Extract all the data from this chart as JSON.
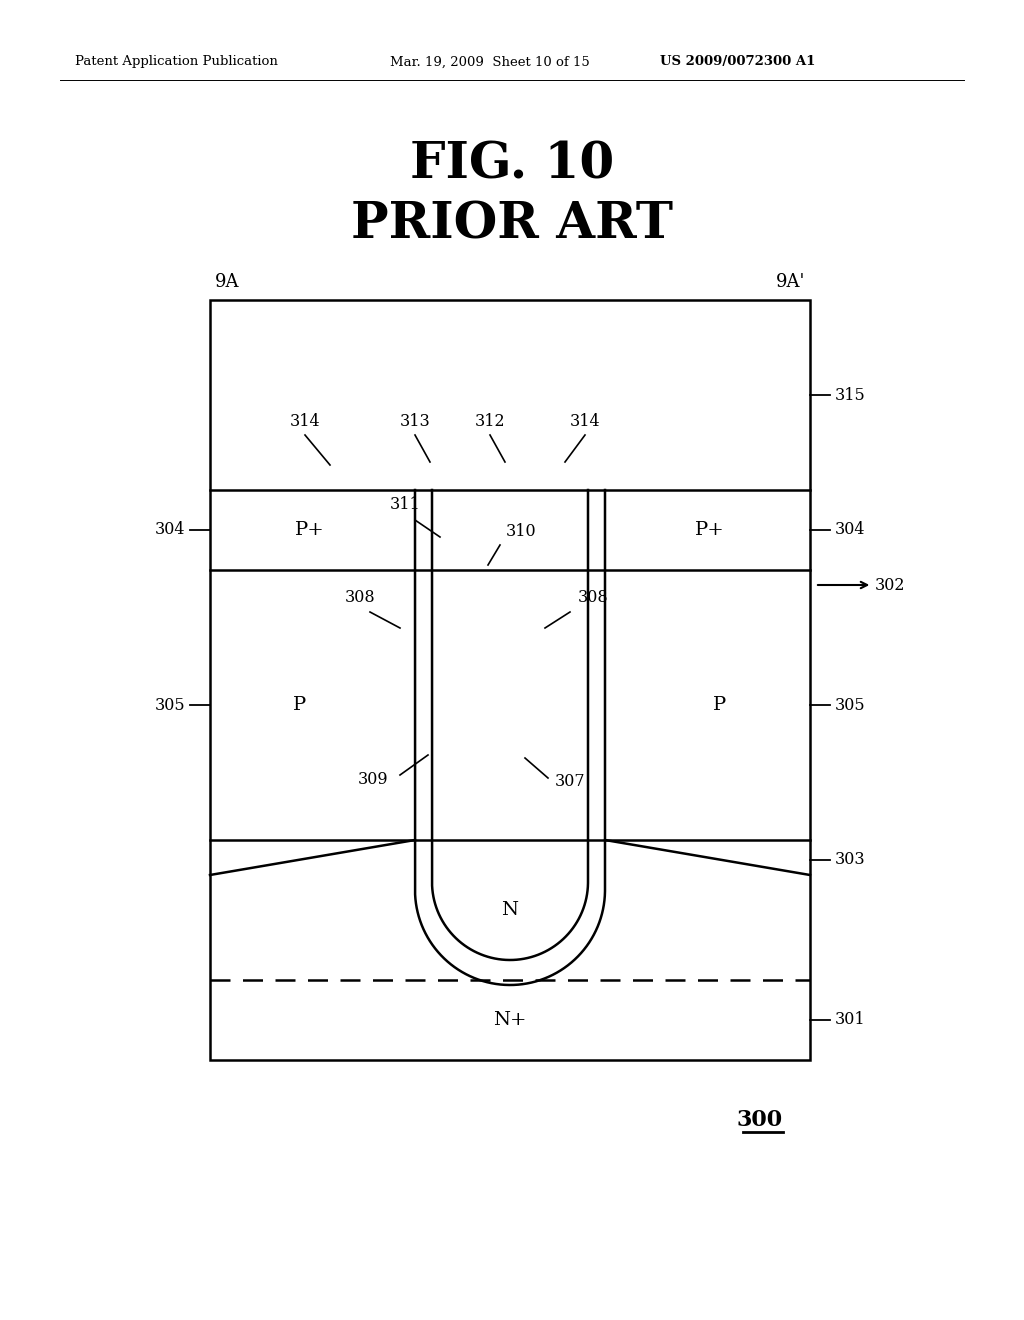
{
  "header_left": "Patent Application Publication",
  "header_mid": "Mar. 19, 2009  Sheet 10 of 15",
  "header_right": "US 2009/0072300 A1",
  "title_line1": "FIG. 10",
  "title_line2": "PRIOR ART",
  "label_9A": "9A",
  "label_9A_prime": "9A'",
  "label_300": "300",
  "bg_color": "#ffffff"
}
